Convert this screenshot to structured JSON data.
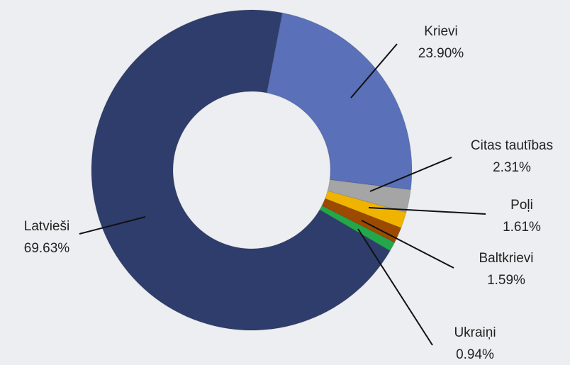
{
  "chart_data": {
    "type": "donut",
    "categories": [
      "Krievi",
      "Citas tautības",
      "Poļi",
      "Baltkrievi",
      "Ukraiņi",
      "Latvieši"
    ],
    "values": [
      23.9,
      2.31,
      1.61,
      1.59,
      0.94,
      69.63
    ],
    "value_labels": [
      "23.90%",
      "2.31%",
      "1.61%",
      "1.59%",
      "0.94%",
      "69.63%"
    ],
    "colors": [
      "#5a70b8",
      "#a5a5a5",
      "#f0b400",
      "#9c4a00",
      "#22a84a",
      "#2e3d6b"
    ]
  }
}
